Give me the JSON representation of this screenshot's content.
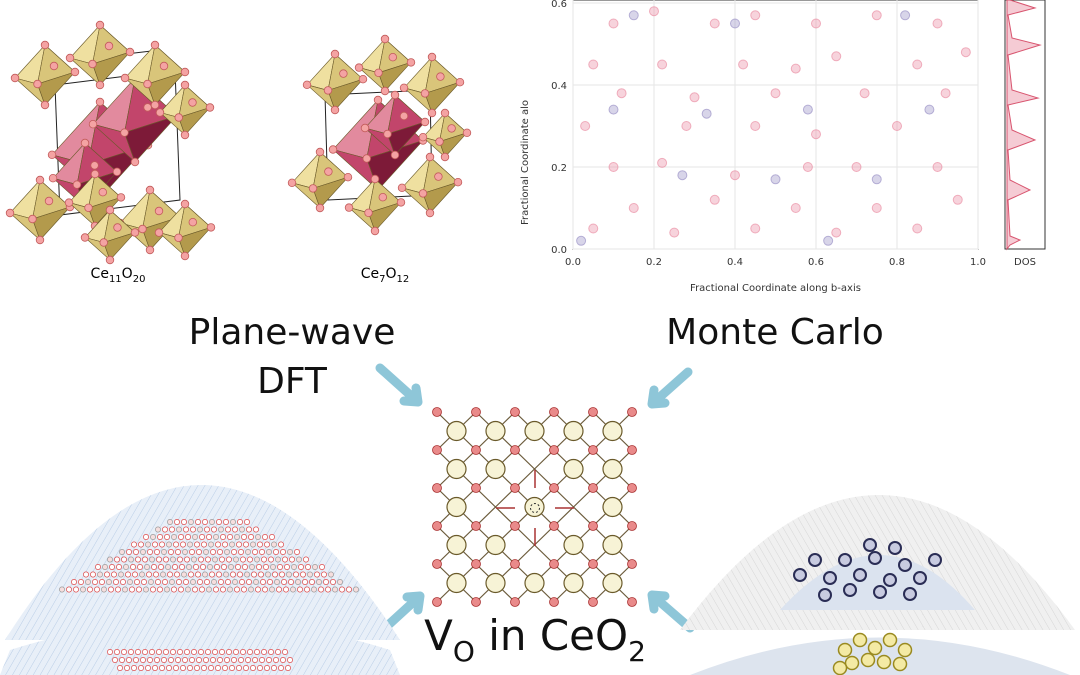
{
  "structures": [
    {
      "formula": [
        "Ce",
        "11",
        "O",
        "20"
      ]
    },
    {
      "formula": [
        "Ce",
        "7",
        "O",
        "12"
      ]
    }
  ],
  "chart_data": {
    "type": "scatter",
    "xlabel": "Fractional Coordinate along b-axis",
    "ylabel": "Fractional Coordinate alo",
    "dos_label": "DOS",
    "xlim": [
      0,
      1
    ],
    "ylim": [
      0,
      0.6
    ],
    "xticks": [
      {
        "value": 0,
        "label": "0.0"
      },
      0.2,
      0.4,
      0.6,
      0.8,
      {
        "value": 1,
        "label": "1.0"
      }
    ],
    "yticks": [
      {
        "value": 0,
        "label": "0.0"
      },
      0.2,
      0.4,
      0.6
    ],
    "grid": true,
    "series": [
      {
        "color": "#e8829a",
        "x": [
          0.1,
          0.2,
          0.35,
          0.45,
          0.6,
          0.75,
          0.9,
          0.05,
          0.22,
          0.42,
          0.55,
          0.65,
          0.85,
          0.97,
          0.12,
          0.3,
          0.5,
          0.72,
          0.92,
          0.03,
          0.28,
          0.45,
          0.6,
          0.8,
          0.1,
          0.22,
          0.4,
          0.58,
          0.7,
          0.9,
          0.15,
          0.35,
          0.55,
          0.75,
          0.95,
          0.05,
          0.25,
          0.45,
          0.65,
          0.85
        ],
        "y": [
          0.55,
          0.58,
          0.55,
          0.57,
          0.55,
          0.57,
          0.55,
          0.45,
          0.45,
          0.45,
          0.44,
          0.47,
          0.45,
          0.48,
          0.38,
          0.37,
          0.38,
          0.38,
          0.38,
          0.3,
          0.3,
          0.3,
          0.28,
          0.3,
          0.2,
          0.21,
          0.18,
          0.2,
          0.2,
          0.2,
          0.1,
          0.12,
          0.1,
          0.1,
          0.12,
          0.05,
          0.04,
          0.05,
          0.04,
          0.05
        ]
      },
      {
        "color": "#8f86c0",
        "x": [
          0.15,
          0.4,
          0.82,
          0.1,
          0.33,
          0.58,
          0.88,
          0.27,
          0.5,
          0.75,
          0.02,
          0.63
        ],
        "y": [
          0.57,
          0.55,
          0.57,
          0.34,
          0.33,
          0.34,
          0.34,
          0.18,
          0.17,
          0.17,
          0.02,
          0.02
        ]
      }
    ]
  },
  "methods": {
    "dft": [
      "Plane-wave",
      "DFT"
    ],
    "monte_carlo": "Monte Carlo"
  },
  "center_label": [
    "V",
    "O",
    " in CeO",
    "2"
  ]
}
